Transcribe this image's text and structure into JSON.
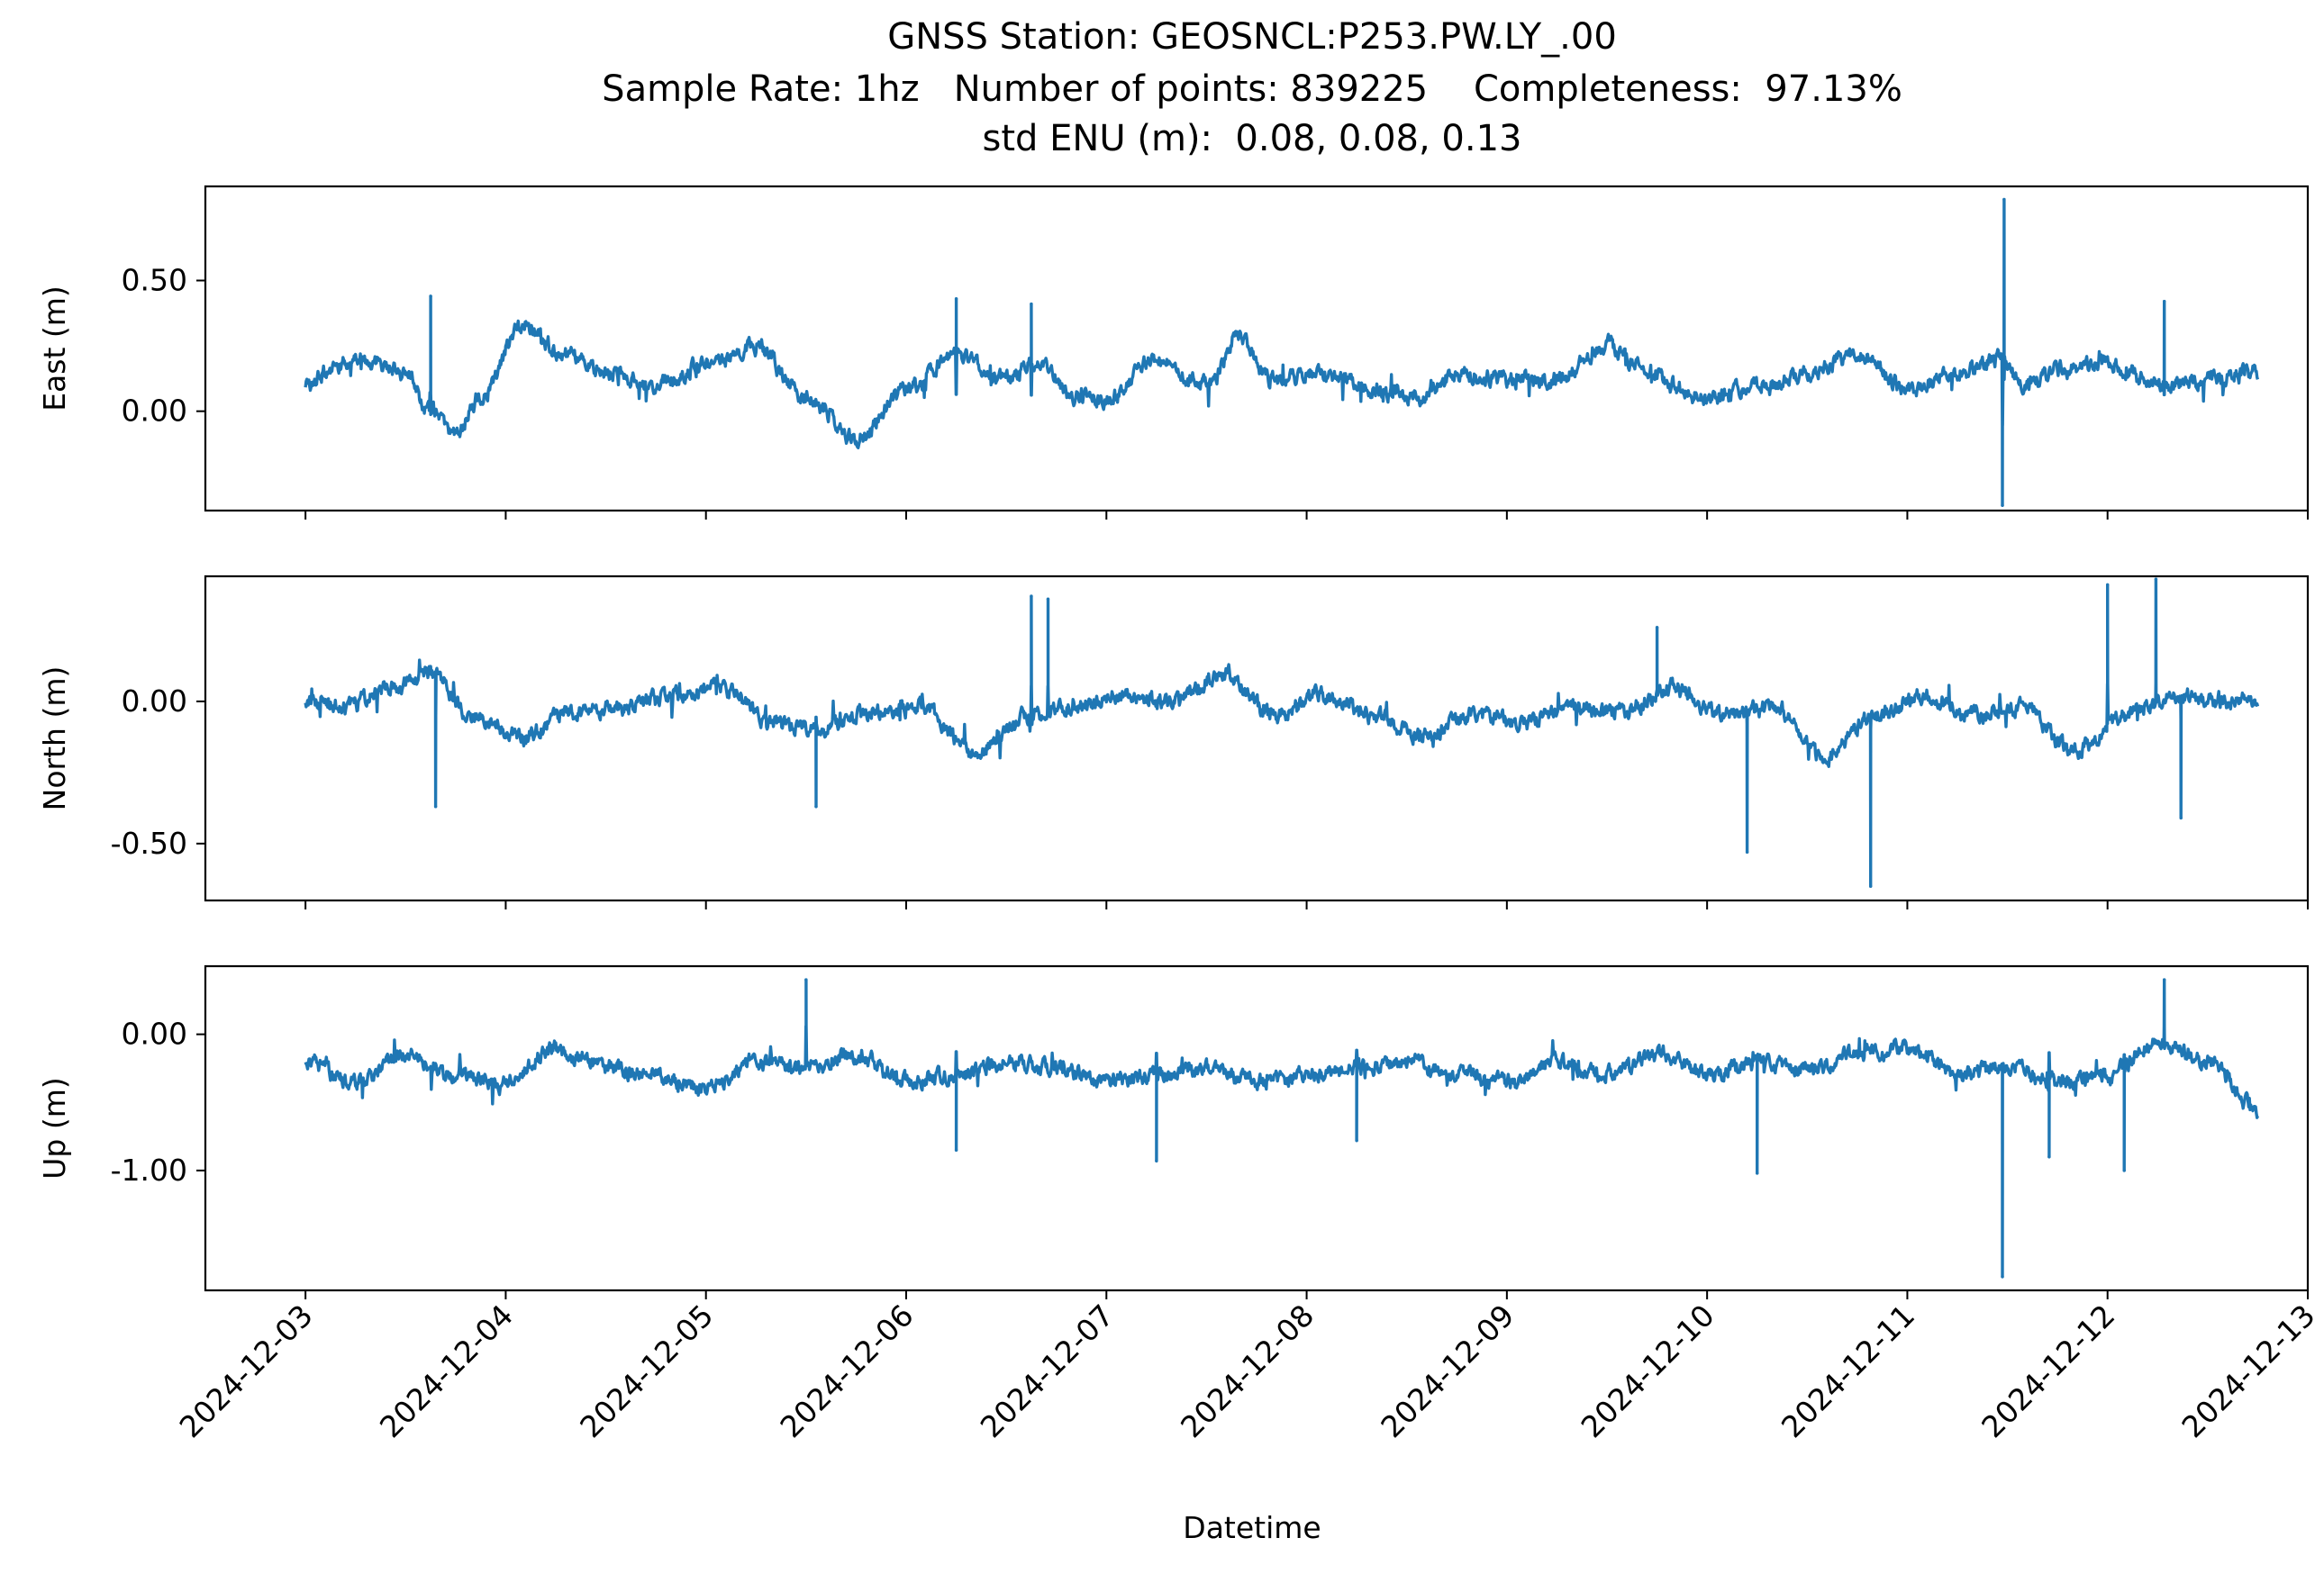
{
  "title": {
    "line1": "GNSS Station: GEOSNCL:P253.PW.LY_.00",
    "line2": "Sample Rate: 1hz   Number of points: 839225    Completeness:  97.13%",
    "line3": "std ENU (m):  0.08, 0.08, 0.13"
  },
  "xlabel": "Datetime",
  "colors": {
    "series": "#1f77b4",
    "axes": "#000000",
    "background": "#ffffff"
  },
  "chart_data": [
    {
      "type": "line",
      "ylabel": "East (m)",
      "xlim": [
        "2024-12-02T12:00",
        "2024-12-13T00:00"
      ],
      "ylim": [
        -0.38,
        0.86
      ],
      "x_tick_labels": [
        "2024-12-03",
        "2024-12-04",
        "2024-12-05",
        "2024-12-06",
        "2024-12-07",
        "2024-12-08",
        "2024-12-09",
        "2024-12-10",
        "2024-12-11",
        "2024-12-12",
        "2024-12-13"
      ],
      "y_ticks": [
        0.0,
        0.5
      ],
      "y_tick_labels": [
        "0.00",
        "0.50"
      ],
      "series": [
        {
          "color": "#1f77b4",
          "x": [
            "2024-12-03T00:00",
            "2024-12-03T04:00",
            "2024-12-03T08:00",
            "2024-12-03T12:00",
            "2024-12-03T15:00",
            "2024-12-03T18:00",
            "2024-12-03T21:00",
            "2024-12-04T02:00",
            "2024-12-04T07:00",
            "2024-12-04T12:00",
            "2024-12-04T18:00",
            "2024-12-05T00:00",
            "2024-12-05T06:00",
            "2024-12-05T12:00",
            "2024-12-05T18:00",
            "2024-12-06T00:00",
            "2024-12-06T06:00",
            "2024-12-06T12:00",
            "2024-12-06T16:00",
            "2024-12-06T20:00",
            "2024-12-07T00:00",
            "2024-12-07T06:00",
            "2024-12-07T12:00",
            "2024-12-07T16:00",
            "2024-12-07T20:00",
            "2024-12-08T02:00",
            "2024-12-08T08:00",
            "2024-12-08T14:00",
            "2024-12-08T18:00",
            "2024-12-09T00:00",
            "2024-12-09T06:00",
            "2024-12-09T12:00",
            "2024-12-09T16:00",
            "2024-12-09T20:00",
            "2024-12-10T00:00",
            "2024-12-10T06:00",
            "2024-12-10T12:00",
            "2024-12-10T18:00",
            "2024-12-11T00:00",
            "2024-12-11T06:00",
            "2024-12-11T11:00",
            "2024-12-11T14:00",
            "2024-12-11T18:00",
            "2024-12-12T00:00",
            "2024-12-12T06:00",
            "2024-12-12T12:00",
            "2024-12-12T18:00"
          ],
          "y": [
            0.1,
            0.18,
            0.2,
            0.15,
            0.0,
            -0.08,
            0.05,
            0.33,
            0.22,
            0.15,
            0.1,
            0.18,
            0.25,
            0.05,
            -0.1,
            0.08,
            0.22,
            0.12,
            0.2,
            0.05,
            0.04,
            0.2,
            0.1,
            0.28,
            0.12,
            0.15,
            0.08,
            0.05,
            0.15,
            0.12,
            0.12,
            0.25,
            0.18,
            0.1,
            0.05,
            0.1,
            0.14,
            0.22,
            0.08,
            0.15,
            0.2,
            0.1,
            0.16,
            0.18,
            0.1,
            0.12,
            0.15
          ],
          "spikes": [
            {
              "x": "2024-12-03T15:00",
              "y": 0.44
            },
            {
              "x": "2024-12-06T06:00",
              "y": 0.43
            },
            {
              "x": "2024-12-06T15:00",
              "y": 0.41
            },
            {
              "x": "2024-12-11T11:36",
              "y": 0.81
            },
            {
              "x": "2024-12-11T11:24",
              "y": -0.36
            },
            {
              "x": "2024-12-12T06:48",
              "y": 0.42
            }
          ]
        }
      ]
    },
    {
      "type": "line",
      "ylabel": "North (m)",
      "xlim": [
        "2024-12-02T12:00",
        "2024-12-13T00:00"
      ],
      "ylim": [
        -0.7,
        0.44
      ],
      "x_tick_labels": [
        "2024-12-03",
        "2024-12-04",
        "2024-12-05",
        "2024-12-06",
        "2024-12-07",
        "2024-12-08",
        "2024-12-09",
        "2024-12-10",
        "2024-12-11",
        "2024-12-12",
        "2024-12-13"
      ],
      "y_ticks": [
        -0.5,
        0.0
      ],
      "y_tick_labels": [
        "-0.50",
        "0.00"
      ],
      "series": [
        {
          "color": "#1f77b4",
          "x": [
            "2024-12-03T00:00",
            "2024-12-03T05:00",
            "2024-12-03T10:00",
            "2024-12-03T15:00",
            "2024-12-03T20:00",
            "2024-12-04T02:00",
            "2024-12-04T08:00",
            "2024-12-04T14:00",
            "2024-12-04T20:00",
            "2024-12-05T02:00",
            "2024-12-05T08:00",
            "2024-12-05T14:00",
            "2024-12-05T20:00",
            "2024-12-06T02:00",
            "2024-12-06T08:00",
            "2024-12-06T15:00",
            "2024-12-06T20:00",
            "2024-12-07T02:00",
            "2024-12-07T08:00",
            "2024-12-07T14:00",
            "2024-12-07T20:00",
            "2024-12-08T02:00",
            "2024-12-08T08:00",
            "2024-12-08T14:00",
            "2024-12-08T20:00",
            "2024-12-09T02:00",
            "2024-12-09T08:00",
            "2024-12-09T14:00",
            "2024-12-09T20:00",
            "2024-12-10T02:00",
            "2024-12-10T08:00",
            "2024-12-10T14:00",
            "2024-12-10T20:00",
            "2024-12-11T02:00",
            "2024-12-11T08:00",
            "2024-12-11T14:00",
            "2024-12-11T20:00",
            "2024-12-12T02:00",
            "2024-12-12T08:00",
            "2024-12-12T14:00",
            "2024-12-12T18:00"
          ],
          "y": [
            0.0,
            -0.02,
            0.05,
            0.1,
            -0.05,
            -0.12,
            -0.04,
            -0.02,
            0.02,
            0.05,
            -0.08,
            -0.1,
            -0.03,
            -0.02,
            -0.18,
            -0.05,
            -0.02,
            0.02,
            0.0,
            0.1,
            -0.05,
            0.02,
            -0.05,
            -0.12,
            -0.05,
            -0.08,
            -0.02,
            -0.03,
            0.05,
            -0.05,
            -0.02,
            -0.2,
            -0.05,
            0.02,
            -0.05,
            -0.02,
            -0.18,
            -0.05,
            0.02,
            0.0,
            0.0
          ],
          "spikes": [
            {
              "x": "2024-12-03T15:36",
              "y": -0.37
            },
            {
              "x": "2024-12-05T13:12",
              "y": -0.37
            },
            {
              "x": "2024-12-06T15:00",
              "y": 0.37
            },
            {
              "x": "2024-12-06T17:00",
              "y": 0.36
            },
            {
              "x": "2024-12-09T18:00",
              "y": 0.26
            },
            {
              "x": "2024-12-10T04:48",
              "y": -0.53
            },
            {
              "x": "2024-12-10T19:36",
              "y": -0.65
            },
            {
              "x": "2024-12-12T00:00",
              "y": 0.41
            },
            {
              "x": "2024-12-12T05:48",
              "y": 0.43
            },
            {
              "x": "2024-12-12T08:48",
              "y": -0.41
            }
          ]
        }
      ]
    },
    {
      "type": "line",
      "ylabel": "Up (m)",
      "xlim": [
        "2024-12-02T12:00",
        "2024-12-13T00:00"
      ],
      "ylim": [
        -1.88,
        0.5
      ],
      "x_tick_labels": [
        "2024-12-03",
        "2024-12-04",
        "2024-12-05",
        "2024-12-06",
        "2024-12-07",
        "2024-12-08",
        "2024-12-09",
        "2024-12-10",
        "2024-12-11",
        "2024-12-12",
        "2024-12-13"
      ],
      "y_ticks": [
        -1.0,
        0.0
      ],
      "y_tick_labels": [
        "-1.00",
        "0.00"
      ],
      "series": [
        {
          "color": "#1f77b4",
          "x": [
            "2024-12-03T00:00",
            "2024-12-03T06:00",
            "2024-12-03T12:00",
            "2024-12-03T18:00",
            "2024-12-04T00:00",
            "2024-12-04T06:00",
            "2024-12-04T12:00",
            "2024-12-04T18:00",
            "2024-12-05T00:00",
            "2024-12-05T06:00",
            "2024-12-05T12:00",
            "2024-12-05T18:00",
            "2024-12-06T00:00",
            "2024-12-06T06:00",
            "2024-12-06T12:00",
            "2024-12-06T18:00",
            "2024-12-07T00:00",
            "2024-12-07T06:00",
            "2024-12-07T12:00",
            "2024-12-07T18:00",
            "2024-12-08T00:00",
            "2024-12-08T06:00",
            "2024-12-08T12:00",
            "2024-12-08T18:00",
            "2024-12-09T00:00",
            "2024-12-09T06:00",
            "2024-12-09T12:00",
            "2024-12-09T18:00",
            "2024-12-10T00:00",
            "2024-12-10T06:00",
            "2024-12-10T12:00",
            "2024-12-10T18:00",
            "2024-12-11T00:00",
            "2024-12-11T06:00",
            "2024-12-11T12:00",
            "2024-12-11T18:00",
            "2024-12-12T00:00",
            "2024-12-12T06:00",
            "2024-12-12T12:00",
            "2024-12-12T18:00"
          ],
          "y": [
            -0.2,
            -0.35,
            -0.15,
            -0.3,
            -0.35,
            -0.1,
            -0.25,
            -0.3,
            -0.4,
            -0.2,
            -0.25,
            -0.15,
            -0.35,
            -0.3,
            -0.2,
            -0.25,
            -0.35,
            -0.3,
            -0.25,
            -0.35,
            -0.3,
            -0.25,
            -0.2,
            -0.3,
            -0.35,
            -0.2,
            -0.3,
            -0.15,
            -0.3,
            -0.2,
            -0.25,
            -0.15,
            -0.1,
            -0.3,
            -0.25,
            -0.35,
            -0.3,
            -0.05,
            -0.2,
            -0.55
          ],
          "spikes": [
            {
              "x": "2024-12-05T12:00",
              "y": 0.4
            },
            {
              "x": "2024-12-06T06:00",
              "y": -0.85
            },
            {
              "x": "2024-12-07T06:00",
              "y": -0.93
            },
            {
              "x": "2024-12-08T06:00",
              "y": -0.78
            },
            {
              "x": "2024-12-10T06:00",
              "y": -1.02
            },
            {
              "x": "2024-12-11T11:24",
              "y": -1.78
            },
            {
              "x": "2024-12-11T17:00",
              "y": -0.9
            },
            {
              "x": "2024-12-12T02:00",
              "y": -1.0
            },
            {
              "x": "2024-12-12T06:48",
              "y": 0.4
            }
          ]
        }
      ]
    }
  ]
}
